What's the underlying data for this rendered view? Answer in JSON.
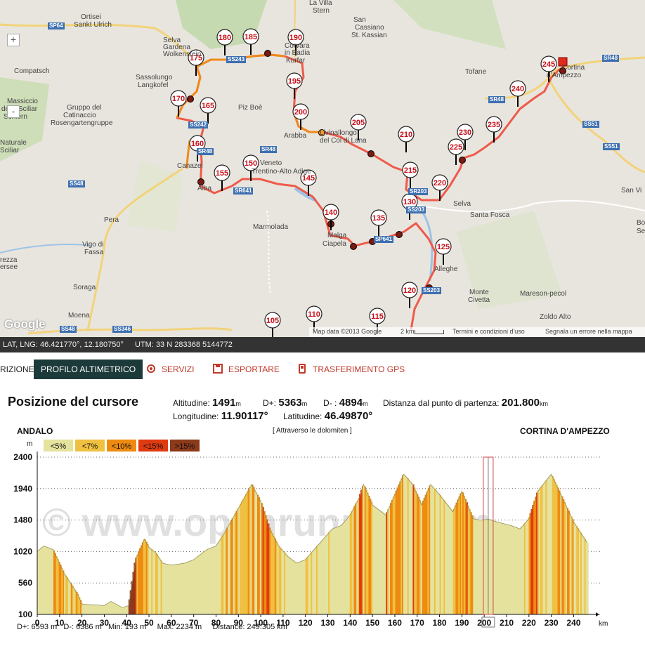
{
  "map": {
    "places": [
      {
        "name": "Ortisei",
        "id": "ortisei"
      },
      {
        "name": "Sankt Ulrich",
        "id": "sankt-ulrich"
      },
      {
        "name": "La Villa",
        "id": "la-villa"
      },
      {
        "name": "Stern",
        "id": "stern"
      },
      {
        "name": "San",
        "id": "san"
      },
      {
        "name": "Cassiano",
        "id": "cassiano"
      },
      {
        "name": "St. Kassian",
        "id": "st-kassian"
      },
      {
        "name": "Selva",
        "id": "selva-1"
      },
      {
        "name": "Gardena",
        "id": "gardena"
      },
      {
        "name": "Wolkenstein",
        "id": "wolkenstein"
      },
      {
        "name": "Corvara",
        "id": "corvara"
      },
      {
        "name": "in Badia",
        "id": "in-badia"
      },
      {
        "name": "Kurfar",
        "id": "kurfar"
      },
      {
        "name": "Compatsch",
        "id": "compatsch"
      },
      {
        "name": "Sassolungo",
        "id": "sassolungo"
      },
      {
        "name": "Langkofel",
        "id": "langkofel"
      },
      {
        "name": "Tofane",
        "id": "tofane"
      },
      {
        "name": "Cortina",
        "id": "cortina"
      },
      {
        "name": "d'Ampezzo",
        "id": "dampezzo"
      },
      {
        "name": "Massiccio",
        "id": "massiccio"
      },
      {
        "name": "dello Sciliar",
        "id": "dello-sciliar"
      },
      {
        "name": "Schlern",
        "id": "schlern"
      },
      {
        "name": "Gruppo del",
        "id": "gruppo-del"
      },
      {
        "name": "Catinaccio",
        "id": "catinaccio"
      },
      {
        "name": "Rosengartengruppe",
        "id": "rosengarten"
      },
      {
        "name": "Piz Boè",
        "id": "piz-boe"
      },
      {
        "name": "Arabba",
        "id": "arabba"
      },
      {
        "name": "Livinallongo",
        "id": "livinallongo"
      },
      {
        "name": "del Col di Lana",
        "id": "col-di-lana"
      },
      {
        "name": "Naturale",
        "id": "naturale"
      },
      {
        "name": "Sciliar",
        "id": "sciliar"
      },
      {
        "name": "Canazei",
        "id": "canazei"
      },
      {
        "name": "Alba",
        "id": "alba"
      },
      {
        "name": "Veneto",
        "id": "veneto"
      },
      {
        "name": "Trentino-Alto Adige",
        "id": "trentino"
      },
      {
        "name": "Pera",
        "id": "pera"
      },
      {
        "name": "Vigo di",
        "id": "vigo-di"
      },
      {
        "name": "Fassa",
        "id": "fassa"
      },
      {
        "name": "Marmolada",
        "id": "marmolada"
      },
      {
        "name": "Malga",
        "id": "malga"
      },
      {
        "name": "Ciapela",
        "id": "ciapela"
      },
      {
        "name": "Selva",
        "id": "selva-2"
      },
      {
        "name": "Santa Fosca",
        "id": "santa-fosca"
      },
      {
        "name": "San Vi",
        "id": "san-vi"
      },
      {
        "name": "Alleghe",
        "id": "alleghe"
      },
      {
        "name": "Monte",
        "id": "monte"
      },
      {
        "name": "Civetta",
        "id": "civetta"
      },
      {
        "name": "Mareson-pecol",
        "id": "mareson"
      },
      {
        "name": "Zoldo Alto",
        "id": "zoldo"
      },
      {
        "name": "Soraga",
        "id": "soraga"
      },
      {
        "name": "Moena",
        "id": "moena"
      },
      {
        "name": "rezza",
        "id": "rezza"
      },
      {
        "name": "ersee",
        "id": "ersee"
      },
      {
        "name": "Bo",
        "id": "bo"
      },
      {
        "name": "Se",
        "id": "se"
      }
    ],
    "roads": [
      "SP64",
      "SS243",
      "SR48",
      "SS242",
      "SR48",
      "SR641",
      "SS48",
      "SP641",
      "SR203",
      "SS203",
      "SR48",
      "SS51",
      "SS51",
      "SR48",
      "SS48",
      "SS346",
      "SS203"
    ],
    "markers": [
      "105",
      "110",
      "115",
      "120",
      "125",
      "130",
      "135",
      "140",
      "145",
      "150",
      "155",
      "160",
      "165",
      "170",
      "175",
      "180",
      "185",
      "190",
      "195",
      "200",
      "205",
      "210",
      "215",
      "220",
      "225",
      "230",
      "235",
      "240",
      "245"
    ],
    "attribution": {
      "data": "Map data ©2013 Google",
      "scale": "2 km",
      "terms": "Termini e condizioni d'uso",
      "report": "Segnala un errore nella mappa",
      "logo": "Google"
    },
    "zoom": {
      "plus": "+",
      "minus": "-"
    }
  },
  "coords": {
    "latlng": "LAT, LNG: 46.421770°, 12.180750°",
    "utm": "UTM: 33 N   283368  5144772"
  },
  "tabs": {
    "partial": "RIZIONE",
    "profile": "PROFILO ALTIMETRICO",
    "services": "SERVIZI",
    "export": "ESPORTARE",
    "gps": "TRASFERIMENTO GPS"
  },
  "cursor": {
    "title": "Posizione del cursore",
    "alt_label": "Altitudine:",
    "alt_value": "1491",
    "alt_unit": "m",
    "dplus_label": "D+:",
    "dplus_value": "5363",
    "dplus_unit": "m",
    "dminus_label": "D- :",
    "dminus_value": "4894",
    "dminus_unit": "m",
    "dist_label": "Distanza dal punto di partenza:",
    "dist_value": "201.800",
    "dist_unit": "km",
    "lon_label": "Longitudine:",
    "lon_value": "11.90117°",
    "lat_label": "Latitudine:",
    "lat_value": "46.49870°"
  },
  "profile_header": {
    "start": "ANDALO",
    "route": "[ Attraverso le dolomiten ]",
    "end": "CORTINA D'AMPEZZO",
    "unit_y": "m",
    "unit_x": "km"
  },
  "footer": {
    "dplus": "D+: 6593 m",
    "dminus": "D-: 6386 m",
    "min": "Min: 193 m",
    "max": "Max: 2234 m",
    "distance": "Distance: 249.305 km"
  },
  "watermark": "© www.openrunner.com",
  "colors": {
    "lt5": "#e5e29e",
    "lt7": "#f0c040",
    "lt10": "#ee8a10",
    "lt15": "#e03a10",
    "gt15": "#8b3a1a",
    "route": "#ee5a4a",
    "dark": "#1d3a3a",
    "link": "#c0392b"
  },
  "chart_data": {
    "type": "area",
    "title": "[ Attraverso le dolomiten ]",
    "xlabel": "km",
    "ylabel": "m",
    "xlim": [
      0,
      249.3
    ],
    "ylim": [
      100,
      2400
    ],
    "x_ticks": [
      0,
      10,
      20,
      30,
      40,
      50,
      60,
      70,
      80,
      90,
      100,
      110,
      120,
      130,
      140,
      150,
      160,
      170,
      180,
      190,
      200,
      210,
      220,
      230,
      240
    ],
    "y_ticks": [
      100,
      560,
      1020,
      1480,
      1940,
      2400
    ],
    "legend": [
      "<5%",
      "<7%",
      "<10%",
      "<15%",
      ">15%"
    ],
    "cursor_km": 201.8,
    "x": [
      0,
      3,
      7,
      12,
      18,
      20,
      30,
      33,
      38,
      41,
      44,
      48,
      50,
      53,
      56,
      60,
      66,
      70,
      76,
      80,
      84,
      90,
      96,
      100,
      104,
      108,
      112,
      116,
      120,
      124,
      128,
      132,
      136,
      140,
      144,
      146,
      150,
      156,
      160,
      164,
      168,
      172,
      176,
      180,
      186,
      190,
      195,
      198,
      202,
      206,
      212,
      216,
      220,
      224,
      230,
      235,
      240,
      244,
      246
    ],
    "y": [
      1020,
      1100,
      1050,
      700,
      400,
      250,
      230,
      290,
      200,
      230,
      900,
      1200,
      1080,
      1000,
      850,
      820,
      850,
      900,
      1050,
      1100,
      1300,
      1650,
      2000,
      1750,
      1350,
      1100,
      950,
      850,
      900,
      1050,
      1200,
      1350,
      1400,
      1550,
      1800,
      2000,
      1700,
      1550,
      1850,
      2150,
      2000,
      1700,
      2000,
      1850,
      1600,
      1900,
      1500,
      1480,
      1491,
      1450,
      1400,
      1350,
      1500,
      1900,
      2150,
      1800,
      1450,
      1250,
      1150
    ]
  }
}
